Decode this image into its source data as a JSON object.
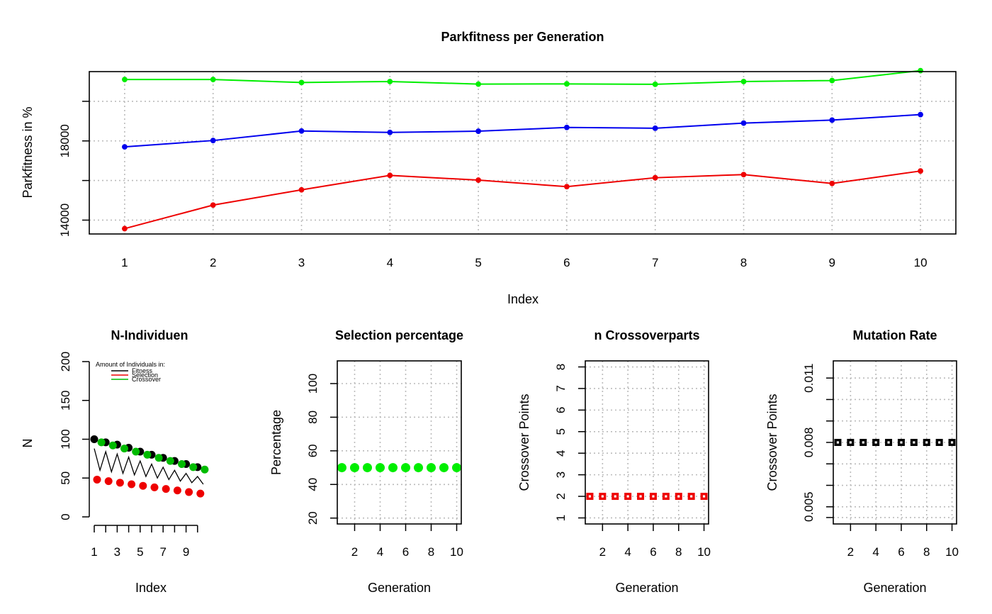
{
  "chart_data": [
    {
      "id": "parkfitness",
      "type": "line",
      "title": "Parkfitness per Generation",
      "xlabel": "Index",
      "ylabel": "Parkfitness in %",
      "x": [
        1,
        2,
        3,
        4,
        5,
        6,
        7,
        8,
        9,
        10
      ],
      "xlim": [
        0.6,
        10.4
      ],
      "ylim": [
        13300,
        21500
      ],
      "yticks": [
        14000,
        18000
      ],
      "ygrid": [
        14000,
        16000,
        18000,
        20000
      ],
      "grid": true,
      "series": [
        {
          "color": "#00ee00",
          "values": [
            21100,
            21100,
            20950,
            21000,
            20870,
            20880,
            20860,
            21000,
            21050,
            21550
          ]
        },
        {
          "color": "#0000ee",
          "values": [
            17700,
            18020,
            18500,
            18430,
            18490,
            18680,
            18640,
            18900,
            19050,
            19330
          ]
        },
        {
          "color": "#ee0000",
          "values": [
            13570,
            14760,
            15530,
            16260,
            16020,
            15690,
            16140,
            16300,
            15850,
            16480
          ]
        }
      ]
    },
    {
      "id": "nindividuen",
      "type": "scatter",
      "title": "N-Individuen",
      "xlabel": "Index",
      "ylabel": "N",
      "ylim": [
        0,
        200
      ],
      "yticks": [
        0,
        50,
        100,
        150,
        200
      ],
      "xticks_labels": [
        "1",
        "3",
        "5",
        "7",
        "9"
      ],
      "grid": false,
      "legend": {
        "title": "Amount of Individuals in:",
        "position": "top-left",
        "entries": [
          {
            "label": "Fitness",
            "color": "#000000"
          },
          {
            "label": "Selection",
            "color": "#ee0000"
          },
          {
            "label": "Crossover",
            "color": "#00bb00"
          }
        ]
      },
      "series": [
        {
          "name": "Fitness",
          "color": "#000000",
          "values": [
            100,
            96,
            93,
            89,
            84,
            80,
            76,
            72,
            68,
            64
          ]
        },
        {
          "name": "Selection",
          "color": "#ee0000",
          "values": [
            48,
            46,
            44,
            42,
            40,
            38,
            36,
            34,
            32,
            30
          ]
        },
        {
          "name": "Crossover",
          "color": "#00bb00",
          "values": [
            96,
            92,
            88,
            84,
            80,
            76,
            72,
            68,
            64,
            61
          ]
        }
      ]
    },
    {
      "id": "selection",
      "type": "scatter",
      "title": "Selection percentage",
      "xlabel": "Generation",
      "ylabel": "Percentage",
      "x": [
        1,
        2,
        3,
        4,
        5,
        6,
        7,
        8,
        9,
        10
      ],
      "xlim": [
        0.64,
        10.36
      ],
      "ylim": [
        16.5,
        113.5
      ],
      "xticks": [
        2,
        4,
        6,
        8,
        10
      ],
      "yticks": [
        20,
        40,
        60,
        80,
        100
      ],
      "grid": true,
      "series": [
        {
          "color": "#00ee00",
          "marker": "circle",
          "values": [
            50,
            50,
            50,
            50,
            50,
            50,
            50,
            50,
            50,
            50
          ]
        }
      ]
    },
    {
      "id": "crossover",
      "type": "scatter",
      "title": "n Crossoverparts",
      "xlabel": "Generation",
      "ylabel": "Crossover Points",
      "x": [
        1,
        2,
        3,
        4,
        5,
        6,
        7,
        8,
        9,
        10
      ],
      "xlim": [
        0.64,
        10.36
      ],
      "ylim": [
        0.72,
        8.28
      ],
      "xticks": [
        2,
        4,
        6,
        8,
        10
      ],
      "yticks": [
        1,
        2,
        3,
        4,
        5,
        6,
        7,
        8
      ],
      "grid": true,
      "series": [
        {
          "color": "#ee0000",
          "marker": "square",
          "values": [
            2,
            2,
            2,
            2,
            2,
            2,
            2,
            2,
            2,
            2
          ]
        }
      ]
    },
    {
      "id": "mutation",
      "type": "scatter",
      "title": "Mutation Rate",
      "xlabel": "Generation",
      "ylabel": "Crossover Points",
      "x": [
        1,
        2,
        3,
        4,
        5,
        6,
        7,
        8,
        9,
        10
      ],
      "xlim": [
        0.64,
        10.36
      ],
      "ylim": [
        0.0042,
        0.0118
      ],
      "xticks": [
        2,
        4,
        6,
        8,
        10
      ],
      "yticks": [
        0.005,
        0.008,
        0.011
      ],
      "ytick_labels": [
        "0.005",
        "0.008",
        "0.011"
      ],
      "ygrid": [
        0.0045,
        0.005,
        0.006,
        0.007,
        0.008,
        0.009,
        0.01,
        0.011
      ],
      "grid": true,
      "series": [
        {
          "color": "#000000",
          "marker": "square",
          "values": [
            0.008,
            0.008,
            0.008,
            0.008,
            0.008,
            0.008,
            0.008,
            0.008,
            0.008,
            0.008
          ]
        }
      ]
    }
  ]
}
